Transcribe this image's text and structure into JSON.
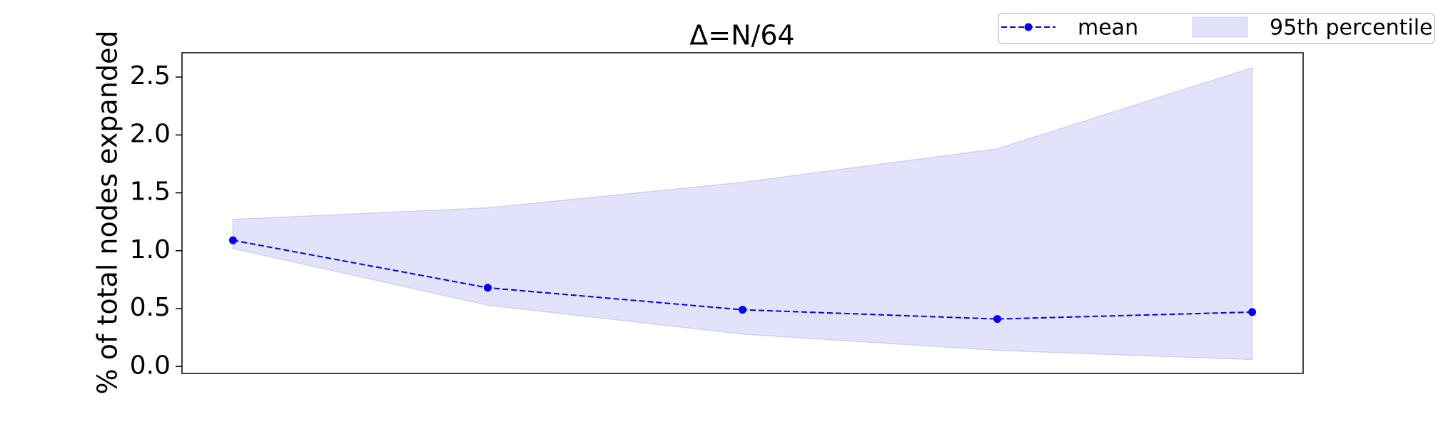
{
  "chart_data": {
    "type": "line",
    "title": "Δ=N/64",
    "y_label": "% of total nodes expanded",
    "categories": [
      null,
      null,
      null,
      null,
      null
    ],
    "series": [
      {
        "name": "mean",
        "color": "#0000ee",
        "values": [
          1.09,
          0.68,
          0.49,
          0.41,
          0.47
        ]
      }
    ],
    "bands": [
      {
        "name": "95th percentile",
        "color": "#e2e2fa",
        "lower": [
          1.02,
          0.53,
          0.28,
          0.14,
          0.06
        ],
        "upper": [
          1.27,
          1.37,
          1.59,
          1.88,
          2.58
        ]
      }
    ],
    "ylim": [
      -0.06,
      2.71
    ],
    "yticks": [
      {
        "value": 0,
        "label": "0.0"
      },
      0.5,
      {
        "value": 1,
        "label": "1.0"
      },
      1.5,
      {
        "value": 2,
        "label": "2.0"
      },
      2.5
    ],
    "grid": false,
    "legend": "upper right"
  }
}
